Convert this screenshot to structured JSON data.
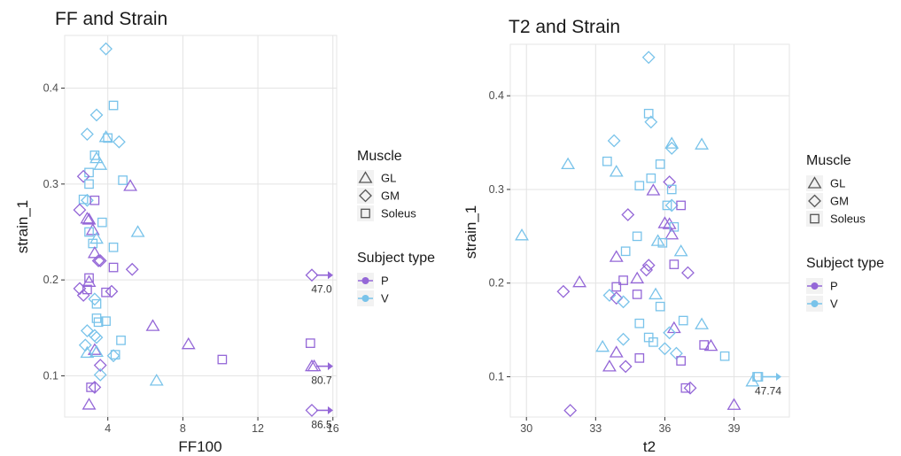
{
  "colors": {
    "P": "#9467d7",
    "V": "#79c3ea",
    "grid": "#e3e3e3"
  },
  "legend": {
    "muscle_title": "Muscle",
    "muscle_items": [
      {
        "shape": "triangle",
        "label": "GL"
      },
      {
        "shape": "diamond",
        "label": "GM"
      },
      {
        "shape": "square",
        "label": "Soleus"
      }
    ],
    "subject_title": "Subject type",
    "subject_items": [
      {
        "group": "P",
        "label": "P"
      },
      {
        "group": "V",
        "label": "V"
      }
    ]
  },
  "chart_data": [
    {
      "type": "scatter",
      "title": "FF and Strain",
      "xlabel": "FF100",
      "ylabel": "strain_1",
      "xlim": [
        1.7,
        16.2
      ],
      "ylim": [
        0.057,
        0.455
      ],
      "xticks": [
        4,
        8,
        12,
        16
      ],
      "xtick_labels": [
        "4",
        "8",
        "12",
        "16"
      ],
      "yticks": [
        0.1,
        0.2,
        0.3,
        0.4
      ],
      "ytick_labels": [
        "0.1",
        "0.2",
        "0.3",
        "0.4"
      ],
      "grid": true,
      "shape_legend": "Muscle",
      "color_legend": "Subject type",
      "points": [
        {
          "x": 3.9,
          "y": 0.441,
          "shape": "diamond",
          "group": "V"
        },
        {
          "x": 4.3,
          "y": 0.382,
          "shape": "square",
          "group": "V"
        },
        {
          "x": 3.4,
          "y": 0.372,
          "shape": "diamond",
          "group": "V"
        },
        {
          "x": 2.9,
          "y": 0.352,
          "shape": "diamond",
          "group": "V"
        },
        {
          "x": 3.9,
          "y": 0.349,
          "shape": "triangle",
          "group": "V"
        },
        {
          "x": 4.0,
          "y": 0.348,
          "shape": "square",
          "group": "V"
        },
        {
          "x": 4.6,
          "y": 0.344,
          "shape": "diamond",
          "group": "V"
        },
        {
          "x": 3.3,
          "y": 0.33,
          "shape": "square",
          "group": "V"
        },
        {
          "x": 3.4,
          "y": 0.327,
          "shape": "triangle",
          "group": "V"
        },
        {
          "x": 3.6,
          "y": 0.32,
          "shape": "triangle",
          "group": "V"
        },
        {
          "x": 3.0,
          "y": 0.312,
          "shape": "square",
          "group": "V"
        },
        {
          "x": 2.7,
          "y": 0.308,
          "shape": "diamond",
          "group": "P"
        },
        {
          "x": 4.8,
          "y": 0.304,
          "shape": "square",
          "group": "V"
        },
        {
          "x": 3.0,
          "y": 0.3,
          "shape": "square",
          "group": "V"
        },
        {
          "x": 5.2,
          "y": 0.298,
          "shape": "triangle",
          "group": "P"
        },
        {
          "x": 2.7,
          "y": 0.284,
          "shape": "square",
          "group": "V"
        },
        {
          "x": 2.9,
          "y": 0.283,
          "shape": "diamond",
          "group": "V"
        },
        {
          "x": 3.3,
          "y": 0.283,
          "shape": "square",
          "group": "P"
        },
        {
          "x": 2.5,
          "y": 0.273,
          "shape": "diamond",
          "group": "P"
        },
        {
          "x": 2.9,
          "y": 0.264,
          "shape": "triangle",
          "group": "P"
        },
        {
          "x": 3.0,
          "y": 0.263,
          "shape": "triangle",
          "group": "P"
        },
        {
          "x": 3.7,
          "y": 0.26,
          "shape": "square",
          "group": "V"
        },
        {
          "x": 3.2,
          "y": 0.252,
          "shape": "triangle",
          "group": "P"
        },
        {
          "x": 3.0,
          "y": 0.25,
          "shape": "square",
          "group": "V"
        },
        {
          "x": 5.6,
          "y": 0.25,
          "shape": "triangle",
          "group": "V"
        },
        {
          "x": 3.4,
          "y": 0.243,
          "shape": "triangle",
          "group": "V"
        },
        {
          "x": 3.2,
          "y": 0.238,
          "shape": "square",
          "group": "V"
        },
        {
          "x": 4.3,
          "y": 0.234,
          "shape": "square",
          "group": "V"
        },
        {
          "x": 3.3,
          "y": 0.228,
          "shape": "triangle",
          "group": "P"
        },
        {
          "x": 3.6,
          "y": 0.22,
          "shape": "diamond",
          "group": "P"
        },
        {
          "x": 3.5,
          "y": 0.22,
          "shape": "diamond",
          "group": "P"
        },
        {
          "x": 4.3,
          "y": 0.213,
          "shape": "square",
          "group": "P"
        },
        {
          "x": 5.3,
          "y": 0.211,
          "shape": "diamond",
          "group": "P"
        },
        {
          "x": 3.0,
          "y": 0.202,
          "shape": "square",
          "group": "P"
        },
        {
          "x": 3.0,
          "y": 0.198,
          "shape": "triangle",
          "group": "P"
        },
        {
          "x": 2.5,
          "y": 0.191,
          "shape": "diamond",
          "group": "P"
        },
        {
          "x": 2.9,
          "y": 0.19,
          "shape": "square",
          "group": "P"
        },
        {
          "x": 4.2,
          "y": 0.188,
          "shape": "diamond",
          "group": "P"
        },
        {
          "x": 3.9,
          "y": 0.187,
          "shape": "square",
          "group": "P"
        },
        {
          "x": 2.7,
          "y": 0.184,
          "shape": "diamond",
          "group": "P"
        },
        {
          "x": 3.3,
          "y": 0.18,
          "shape": "diamond",
          "group": "V"
        },
        {
          "x": 3.4,
          "y": 0.175,
          "shape": "square",
          "group": "V"
        },
        {
          "x": 3.4,
          "y": 0.16,
          "shape": "square",
          "group": "V"
        },
        {
          "x": 3.5,
          "y": 0.156,
          "shape": "square",
          "group": "V"
        },
        {
          "x": 3.9,
          "y": 0.157,
          "shape": "square",
          "group": "V"
        },
        {
          "x": 6.4,
          "y": 0.152,
          "shape": "triangle",
          "group": "P"
        },
        {
          "x": 2.9,
          "y": 0.147,
          "shape": "diamond",
          "group": "V"
        },
        {
          "x": 3.3,
          "y": 0.142,
          "shape": "diamond",
          "group": "V"
        },
        {
          "x": 3.4,
          "y": 0.14,
          "shape": "diamond",
          "group": "V"
        },
        {
          "x": 4.7,
          "y": 0.137,
          "shape": "square",
          "group": "V"
        },
        {
          "x": 2.8,
          "y": 0.132,
          "shape": "diamond",
          "group": "V"
        },
        {
          "x": 8.3,
          "y": 0.133,
          "shape": "triangle",
          "group": "P"
        },
        {
          "x": 3.3,
          "y": 0.127,
          "shape": "triangle",
          "group": "P"
        },
        {
          "x": 2.9,
          "y": 0.124,
          "shape": "triangle",
          "group": "V"
        },
        {
          "x": 3.4,
          "y": 0.125,
          "shape": "triangle",
          "group": "V"
        },
        {
          "x": 4.3,
          "y": 0.121,
          "shape": "diamond",
          "group": "V"
        },
        {
          "x": 4.4,
          "y": 0.122,
          "shape": "square",
          "group": "V"
        },
        {
          "x": 10.1,
          "y": 0.117,
          "shape": "square",
          "group": "P"
        },
        {
          "x": 3.6,
          "y": 0.111,
          "shape": "diamond",
          "group": "P"
        },
        {
          "x": 3.6,
          "y": 0.101,
          "shape": "diamond",
          "group": "V"
        },
        {
          "x": 6.6,
          "y": 0.095,
          "shape": "triangle",
          "group": "V"
        },
        {
          "x": 3.1,
          "y": 0.088,
          "shape": "square",
          "group": "P"
        },
        {
          "x": 3.3,
          "y": 0.088,
          "shape": "diamond",
          "group": "P"
        },
        {
          "x": 3.0,
          "y": 0.07,
          "shape": "triangle",
          "group": "P"
        },
        {
          "x": 14.8,
          "y": 0.134,
          "shape": "square",
          "group": "P"
        },
        {
          "x": 15.0,
          "y": 0.11,
          "shape": "triangle",
          "group": "P"
        }
      ],
      "offscale": [
        {
          "y": 0.205,
          "shape": "diamond",
          "group": "P",
          "label": "47.0"
        },
        {
          "y": 0.11,
          "shape": "triangle",
          "group": "P",
          "label": "80.7"
        },
        {
          "y": 0.064,
          "shape": "diamond",
          "group": "P",
          "label": "86.5"
        }
      ]
    },
    {
      "type": "scatter",
      "title": "T2 and Strain",
      "xlabel": "t2",
      "ylabel": "strain_1",
      "xlim": [
        29.3,
        41.4
      ],
      "ylim": [
        0.057,
        0.455
      ],
      "xticks": [
        30,
        33,
        36,
        39
      ],
      "xtick_labels": [
        "30",
        "33",
        "36",
        "39"
      ],
      "yticks": [
        0.1,
        0.2,
        0.3,
        0.4
      ],
      "ytick_labels": [
        "0.1",
        "0.2",
        "0.3",
        "0.4"
      ],
      "grid": true,
      "shape_legend": "Muscle",
      "color_legend": "Subject type",
      "points": [
        {
          "x": 35.3,
          "y": 0.441,
          "shape": "diamond",
          "group": "V"
        },
        {
          "x": 35.3,
          "y": 0.381,
          "shape": "square",
          "group": "V"
        },
        {
          "x": 35.4,
          "y": 0.372,
          "shape": "diamond",
          "group": "V"
        },
        {
          "x": 33.8,
          "y": 0.352,
          "shape": "diamond",
          "group": "V"
        },
        {
          "x": 36.3,
          "y": 0.349,
          "shape": "triangle",
          "group": "V"
        },
        {
          "x": 37.6,
          "y": 0.348,
          "shape": "triangle",
          "group": "V"
        },
        {
          "x": 36.3,
          "y": 0.344,
          "shape": "diamond",
          "group": "V"
        },
        {
          "x": 33.5,
          "y": 0.33,
          "shape": "square",
          "group": "V"
        },
        {
          "x": 31.8,
          "y": 0.327,
          "shape": "triangle",
          "group": "V"
        },
        {
          "x": 35.8,
          "y": 0.327,
          "shape": "square",
          "group": "V"
        },
        {
          "x": 33.9,
          "y": 0.319,
          "shape": "triangle",
          "group": "V"
        },
        {
          "x": 35.4,
          "y": 0.312,
          "shape": "square",
          "group": "V"
        },
        {
          "x": 36.2,
          "y": 0.308,
          "shape": "diamond",
          "group": "P"
        },
        {
          "x": 34.9,
          "y": 0.304,
          "shape": "square",
          "group": "V"
        },
        {
          "x": 36.3,
          "y": 0.3,
          "shape": "square",
          "group": "V"
        },
        {
          "x": 35.5,
          "y": 0.299,
          "shape": "triangle",
          "group": "P"
        },
        {
          "x": 36.1,
          "y": 0.283,
          "shape": "square",
          "group": "V"
        },
        {
          "x": 36.3,
          "y": 0.283,
          "shape": "diamond",
          "group": "V"
        },
        {
          "x": 36.7,
          "y": 0.283,
          "shape": "square",
          "group": "P"
        },
        {
          "x": 34.4,
          "y": 0.273,
          "shape": "diamond",
          "group": "P"
        },
        {
          "x": 36.0,
          "y": 0.264,
          "shape": "triangle",
          "group": "P"
        },
        {
          "x": 36.2,
          "y": 0.263,
          "shape": "triangle",
          "group": "P"
        },
        {
          "x": 36.4,
          "y": 0.26,
          "shape": "square",
          "group": "V"
        },
        {
          "x": 36.3,
          "y": 0.252,
          "shape": "triangle",
          "group": "P"
        },
        {
          "x": 29.8,
          "y": 0.251,
          "shape": "triangle",
          "group": "V"
        },
        {
          "x": 34.8,
          "y": 0.25,
          "shape": "square",
          "group": "V"
        },
        {
          "x": 35.7,
          "y": 0.245,
          "shape": "triangle",
          "group": "V"
        },
        {
          "x": 35.9,
          "y": 0.243,
          "shape": "square",
          "group": "V"
        },
        {
          "x": 36.7,
          "y": 0.234,
          "shape": "triangle",
          "group": "V"
        },
        {
          "x": 34.3,
          "y": 0.234,
          "shape": "square",
          "group": "V"
        },
        {
          "x": 33.9,
          "y": 0.228,
          "shape": "triangle",
          "group": "P"
        },
        {
          "x": 36.4,
          "y": 0.22,
          "shape": "square",
          "group": "P"
        },
        {
          "x": 35.3,
          "y": 0.219,
          "shape": "diamond",
          "group": "P"
        },
        {
          "x": 35.2,
          "y": 0.214,
          "shape": "diamond",
          "group": "P"
        },
        {
          "x": 37.0,
          "y": 0.211,
          "shape": "diamond",
          "group": "P"
        },
        {
          "x": 34.8,
          "y": 0.205,
          "shape": "triangle",
          "group": "P"
        },
        {
          "x": 34.2,
          "y": 0.203,
          "shape": "square",
          "group": "P"
        },
        {
          "x": 32.3,
          "y": 0.201,
          "shape": "triangle",
          "group": "P"
        },
        {
          "x": 33.9,
          "y": 0.196,
          "shape": "square",
          "group": "P"
        },
        {
          "x": 31.6,
          "y": 0.191,
          "shape": "diamond",
          "group": "P"
        },
        {
          "x": 34.8,
          "y": 0.188,
          "shape": "square",
          "group": "P"
        },
        {
          "x": 35.6,
          "y": 0.188,
          "shape": "triangle",
          "group": "V"
        },
        {
          "x": 33.6,
          "y": 0.187,
          "shape": "diamond",
          "group": "V"
        },
        {
          "x": 33.9,
          "y": 0.184,
          "shape": "diamond",
          "group": "P"
        },
        {
          "x": 34.2,
          "y": 0.18,
          "shape": "diamond",
          "group": "V"
        },
        {
          "x": 35.8,
          "y": 0.175,
          "shape": "square",
          "group": "V"
        },
        {
          "x": 36.8,
          "y": 0.16,
          "shape": "square",
          "group": "V"
        },
        {
          "x": 34.9,
          "y": 0.157,
          "shape": "square",
          "group": "V"
        },
        {
          "x": 37.6,
          "y": 0.156,
          "shape": "triangle",
          "group": "V"
        },
        {
          "x": 36.4,
          "y": 0.152,
          "shape": "triangle",
          "group": "P"
        },
        {
          "x": 36.2,
          "y": 0.147,
          "shape": "diamond",
          "group": "V"
        },
        {
          "x": 34.2,
          "y": 0.14,
          "shape": "diamond",
          "group": "V"
        },
        {
          "x": 35.3,
          "y": 0.142,
          "shape": "square",
          "group": "V"
        },
        {
          "x": 35.5,
          "y": 0.137,
          "shape": "square",
          "group": "V"
        },
        {
          "x": 37.7,
          "y": 0.134,
          "shape": "square",
          "group": "P"
        },
        {
          "x": 38.0,
          "y": 0.133,
          "shape": "triangle",
          "group": "P"
        },
        {
          "x": 33.3,
          "y": 0.132,
          "shape": "triangle",
          "group": "V"
        },
        {
          "x": 36.0,
          "y": 0.13,
          "shape": "diamond",
          "group": "V"
        },
        {
          "x": 33.9,
          "y": 0.126,
          "shape": "triangle",
          "group": "P"
        },
        {
          "x": 36.5,
          "y": 0.125,
          "shape": "diamond",
          "group": "V"
        },
        {
          "x": 38.6,
          "y": 0.122,
          "shape": "square",
          "group": "V"
        },
        {
          "x": 34.9,
          "y": 0.12,
          "shape": "square",
          "group": "P"
        },
        {
          "x": 36.7,
          "y": 0.117,
          "shape": "square",
          "group": "P"
        },
        {
          "x": 33.6,
          "y": 0.111,
          "shape": "triangle",
          "group": "P"
        },
        {
          "x": 34.3,
          "y": 0.111,
          "shape": "diamond",
          "group": "P"
        },
        {
          "x": 39.8,
          "y": 0.095,
          "shape": "triangle",
          "group": "V"
        },
        {
          "x": 36.9,
          "y": 0.088,
          "shape": "square",
          "group": "P"
        },
        {
          "x": 37.1,
          "y": 0.088,
          "shape": "diamond",
          "group": "P"
        },
        {
          "x": 39.0,
          "y": 0.07,
          "shape": "triangle",
          "group": "P"
        },
        {
          "x": 31.9,
          "y": 0.064,
          "shape": "diamond",
          "group": "P"
        },
        {
          "x": 40.0,
          "y": 0.1,
          "shape": "square",
          "group": "V"
        }
      ],
      "offscale": [
        {
          "y": 0.1,
          "shape": "square",
          "group": "V",
          "label": "47.74"
        }
      ]
    }
  ]
}
